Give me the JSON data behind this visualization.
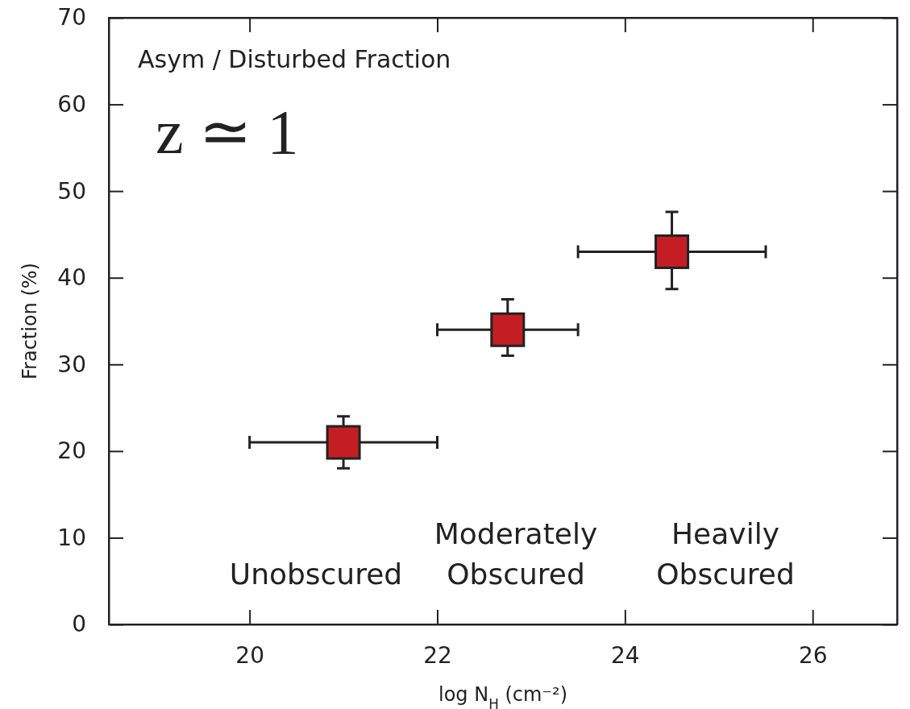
{
  "chart_data": {
    "type": "scatter",
    "xlabel": "log N$_{H}$ (cm⁻²)",
    "ylabel": "Fraction (%)",
    "x": [
      21,
      22.75,
      24.5
    ],
    "series": [
      {
        "color": "#c41e24",
        "values": [
          21,
          34,
          43
        ],
        "errors": [
          [
            18,
            24
          ],
          [
            31,
            37.5
          ],
          [
            38.7,
            47.6
          ]
        ],
        "xerrors": [
          [
            20,
            22
          ],
          [
            22,
            23.5
          ],
          [
            23.5,
            25.5
          ]
        ]
      }
    ],
    "marker": "square",
    "grid": false,
    "xlim": [
      18.5,
      26.9
    ],
    "xticks": [
      20,
      22,
      24,
      26
    ],
    "ylim": [
      0,
      70
    ],
    "yticks": [
      0,
      10,
      20,
      30,
      40,
      50,
      60,
      70
    ],
    "annotations": [
      "Asym / Disturbed Fraction",
      "z ≃ 1",
      "Unobscured",
      "Moderately Obscured",
      "Heavily Obscured"
    ]
  }
}
